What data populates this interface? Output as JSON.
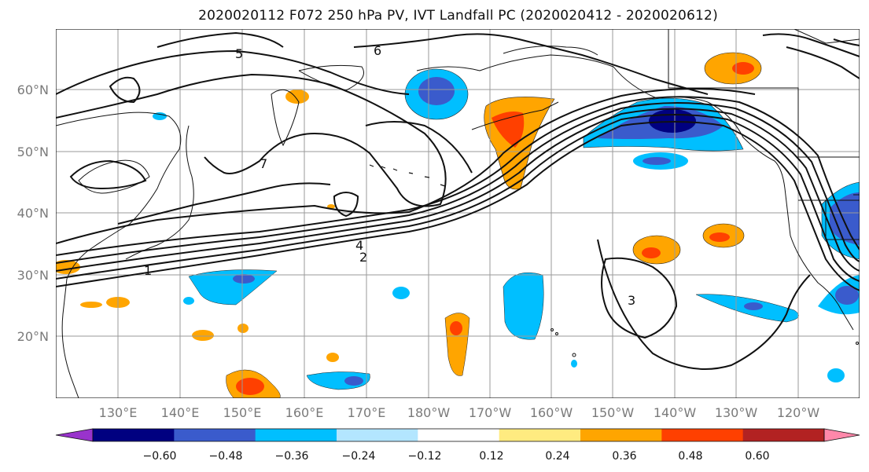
{
  "title": "2020020112 F072 250 hPa PV, IVT Landfall PC (2020020412 - 2020020612)",
  "map": {
    "lat_labels": [
      "60°N",
      "50°N",
      "40°N",
      "30°N",
      "20°N"
    ],
    "lon_labels": [
      "130°E",
      "140°E",
      "150°E",
      "160°E",
      "170°E",
      "180°W",
      "170°W",
      "160°W",
      "150°W",
      "140°W",
      "130°W",
      "120°W"
    ],
    "contour_labels": [
      "1",
      "2",
      "3",
      "4",
      "5",
      "6",
      "7"
    ]
  },
  "colorbar": {
    "tick_labels": [
      "−0.60",
      "−0.48",
      "−0.36",
      "−0.24",
      "−0.12",
      "0.12",
      "0.24",
      "0.36",
      "0.48",
      "0.60"
    ],
    "colors": [
      "#9933cc",
      "#000080",
      "#3a5bcc",
      "#00bfff",
      "#b3e6ff",
      "#ffffff",
      "#ffeb80",
      "#ffa500",
      "#ff4000",
      "#b22222",
      "#ff88aa"
    ]
  },
  "legend": {
    "shading": "IVT Landfall PC",
    "contours": "250 hPa PV"
  }
}
